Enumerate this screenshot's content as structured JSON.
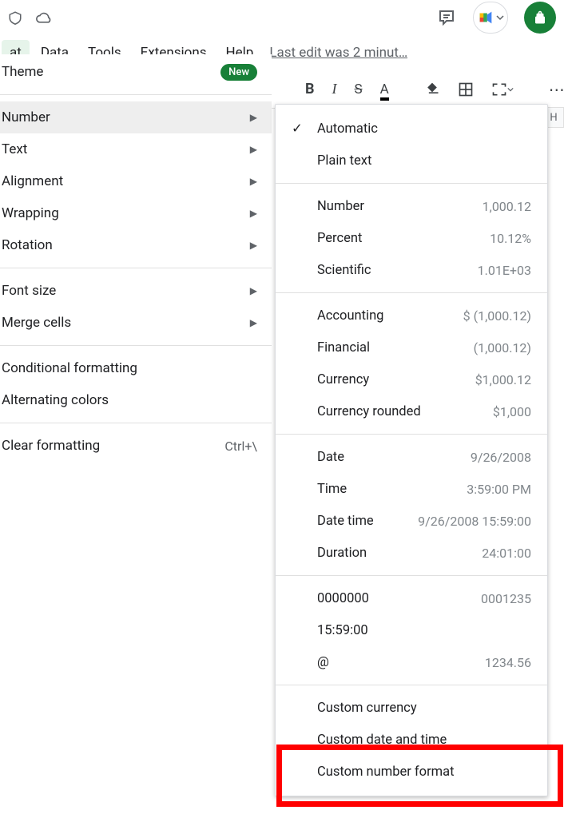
{
  "topbar": {
    "comment_icon": "comment",
    "cloud_icon": "cloud"
  },
  "menubar": {
    "items": [
      "at",
      "Data",
      "Tools",
      "Extensions",
      "Help"
    ],
    "last_edit": "Last edit was 2 minut…"
  },
  "toolbar": {
    "bold": "B",
    "italic": "I",
    "strike": "S",
    "text_color": "A",
    "more": "⋯"
  },
  "format_menu": {
    "theme": {
      "label": "Theme",
      "badge": "New"
    },
    "number": {
      "label": "Number"
    },
    "text": {
      "label": "Text"
    },
    "alignment": {
      "label": "Alignment"
    },
    "wrapping": {
      "label": "Wrapping"
    },
    "rotation": {
      "label": "Rotation"
    },
    "font_size": {
      "label": "Font size"
    },
    "merge_cells": {
      "label": "Merge cells"
    },
    "conditional": {
      "label": "Conditional formatting"
    },
    "alternating": {
      "label": "Alternating colors"
    },
    "clear": {
      "label": "Clear formatting",
      "shortcut": "Ctrl+\\"
    }
  },
  "number_menu": {
    "automatic": {
      "label": "Automatic",
      "checked": true
    },
    "plain_text": {
      "label": "Plain text"
    },
    "number": {
      "label": "Number",
      "example": "1,000.12"
    },
    "percent": {
      "label": "Percent",
      "example": "10.12%"
    },
    "scientific": {
      "label": "Scientific",
      "example": "1.01E+03"
    },
    "accounting": {
      "label": "Accounting",
      "example": "$ (1,000.12)"
    },
    "financial": {
      "label": "Financial",
      "example": "(1,000.12)"
    },
    "currency": {
      "label": "Currency",
      "example": "$1,000.12"
    },
    "currency_rounded": {
      "label": "Currency rounded",
      "example": "$1,000"
    },
    "date": {
      "label": "Date",
      "example": "9/26/2008"
    },
    "time": {
      "label": "Time",
      "example": "3:59:00 PM"
    },
    "date_time": {
      "label": "Date time",
      "example": "9/26/2008 15:59:00"
    },
    "duration": {
      "label": "Duration",
      "example": "24:01:00"
    },
    "zeros": {
      "label": "0000000",
      "example": "0001235"
    },
    "time2": {
      "label": "15:59:00"
    },
    "at": {
      "label": "@",
      "example": "1234.56"
    },
    "custom_currency": {
      "label": "Custom currency"
    },
    "custom_date": {
      "label": "Custom date and time"
    },
    "custom_number": {
      "label": "Custom number format"
    }
  },
  "grid": {
    "col_h": "H"
  },
  "colors": {
    "accent_green": "#188038",
    "highlight_red": "#ff0000",
    "text_primary": "#202124",
    "text_secondary": "#5f6368",
    "example_gray": "#80868b"
  }
}
